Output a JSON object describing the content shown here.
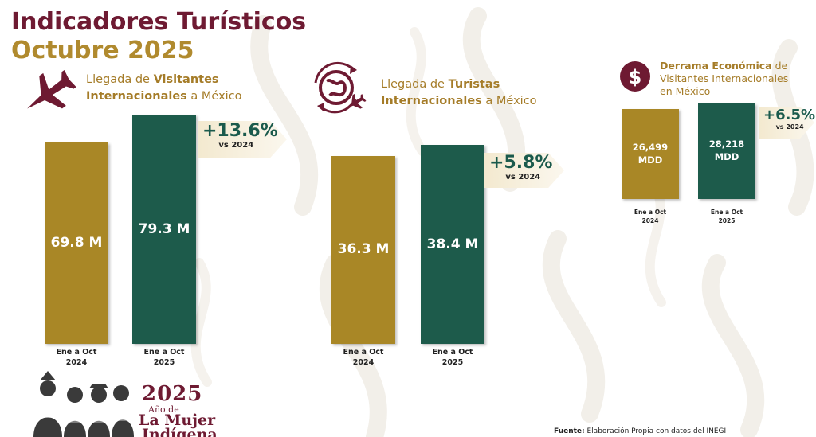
{
  "title": {
    "line1": "Indicadores Turísticos",
    "line2": "Octubre 2025"
  },
  "colors": {
    "gold": "#a98726",
    "green": "#1d5b4b",
    "maroon": "#6e1a32",
    "growth_text": "#1a5a4c"
  },
  "icons": [
    "airplane-icon",
    "globe-plane-icon",
    "dollar-icon"
  ],
  "chart_data": [
    {
      "type": "bar",
      "title_parts": [
        "Llegada de ",
        "Visitantes Internacionales",
        " a México"
      ],
      "categories": [
        "Ene a Oct 2024",
        "Ene a Oct 2025"
      ],
      "values": [
        69.8,
        79.3
      ],
      "value_labels": [
        "69.8 M",
        "79.3 M"
      ],
      "growth": "+13.6%",
      "growth_note": "vs 2024"
    },
    {
      "type": "bar",
      "title_parts": [
        "Llegada de ",
        "Turistas Internacionales",
        " a México"
      ],
      "categories": [
        "Ene a Oct 2024",
        "Ene a Oct 2025"
      ],
      "values": [
        36.3,
        38.4
      ],
      "value_labels": [
        "36.3 M",
        "38.4 M"
      ],
      "growth": "+5.8%",
      "growth_note": "vs 2024"
    },
    {
      "type": "bar",
      "title_parts": [
        "Derrama Económica",
        " de Visitantes Internacionales en México"
      ],
      "categories": [
        "Ene a Oct 2024",
        "Ene a Oct 2025"
      ],
      "values": [
        26499,
        28218
      ],
      "value_labels": [
        "26,499 MDD",
        "28,218 MDD"
      ],
      "growth": "+6.5%",
      "growth_note": "vs 2024"
    }
  ],
  "logo": {
    "year": "2025",
    "line_sub": "Año de",
    "line1": "La Mujer",
    "line2": "Indígena"
  },
  "source": {
    "label": "Fuente:",
    "text": " Elaboración Propia con datos del INEGI"
  }
}
